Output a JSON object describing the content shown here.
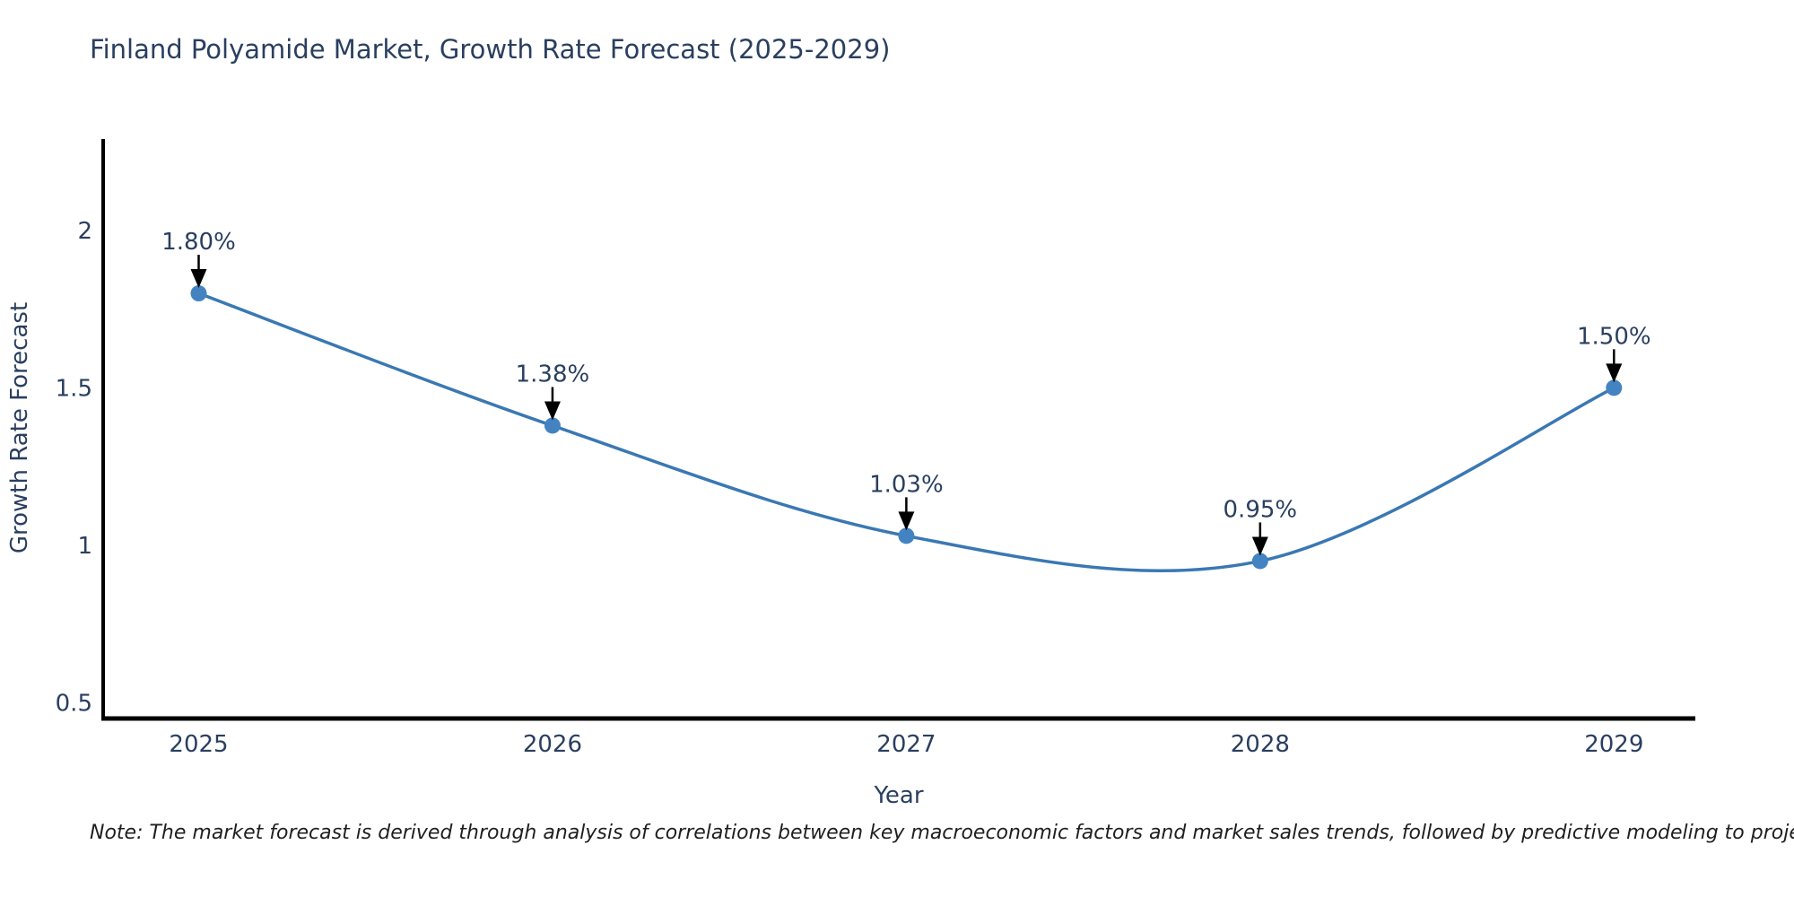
{
  "title": "Finland Polyamide Market, Growth Rate Forecast (2025-2029)",
  "note": "Note: The market forecast is derived through analysis of correlations between key macroeconomic factors and market sales trends, followed by predictive modeling to project future sales",
  "colors": {
    "background": "#ffffff",
    "line": "#3a78b3",
    "marker_fill": "#4483c1",
    "axis_line": "#000000",
    "text": "#2a3f5f",
    "annotation_text": "#2a3f5f",
    "annotation_arrow": "#000000",
    "note_text": "#1f1f1f"
  },
  "chart_data": {
    "type": "line",
    "title": "Finland Polyamide Market, Growth Rate Forecast (2025-2029)",
    "xlabel": "Year",
    "ylabel": "Growth Rate Forecast",
    "x": [
      2025,
      2026,
      2027,
      2028,
      2029
    ],
    "series": [
      {
        "name": "Growth Rate Forecast",
        "values": [
          1.8,
          1.38,
          1.03,
          0.95,
          1.5
        ],
        "point_labels": [
          "1.80%",
          "1.38%",
          "1.03%",
          "0.95%",
          "1.50%"
        ]
      }
    ],
    "line_shape": "spline",
    "markers": true,
    "xticks": [
      2025,
      2026,
      2027,
      2028,
      2029
    ],
    "xtick_labels": [
      "2025",
      "2026",
      "2027",
      "2028",
      "2029"
    ],
    "yticks": [
      0.5,
      1,
      1.5,
      2
    ],
    "ytick_labels": [
      "0.5",
      "1",
      "1.5",
      "2"
    ],
    "xlim": [
      2024.73,
      2029.23
    ],
    "ylim": [
      0.45,
      2.29
    ],
    "grid": false,
    "legend": "none",
    "annotations_with_arrows": true
  }
}
